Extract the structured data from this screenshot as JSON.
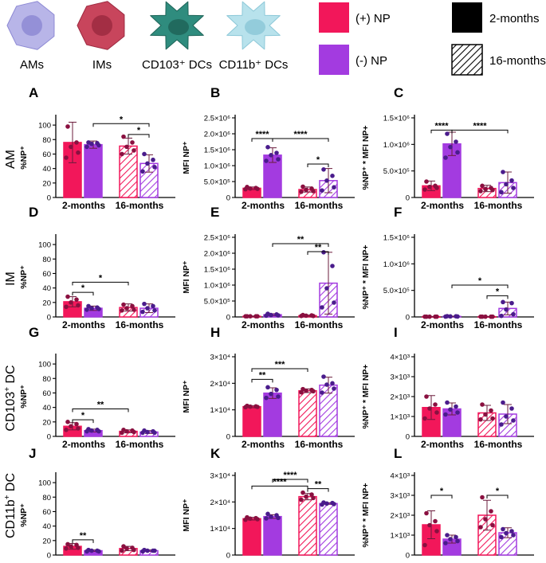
{
  "cells": [
    {
      "name": "AMs",
      "color": "#b8b5e8",
      "nucleus": "#8d89d4",
      "kind": "round"
    },
    {
      "name": "IMs",
      "color": "#c8455c",
      "nucleus": "#9c2a40",
      "kind": "round"
    },
    {
      "name": "CD103⁺ DCs",
      "color": "#2f8c7e",
      "nucleus": "#1e6458",
      "kind": "spiky"
    },
    {
      "name": "CD11b⁺ DCs",
      "color": "#b8e2ec",
      "nucleus": "#8cc8d8",
      "kind": "spiky"
    }
  ],
  "legend": {
    "np": [
      {
        "label": "(+) NP",
        "color": "#f2175a"
      },
      {
        "label": "(-) NP",
        "color": "#a33be0"
      }
    ],
    "age": [
      {
        "label": "2-months",
        "pattern": "solid"
      },
      {
        "label": "16-months",
        "pattern": "hatched"
      }
    ]
  },
  "colors": {
    "pos": "#f2175a",
    "neg": "#a33be0",
    "pos_dot": "#8a1040",
    "neg_dot": "#4a1c8c"
  },
  "rows": [
    {
      "label": "AM",
      "sup": ""
    },
    {
      "label": "IM",
      "sup": ""
    },
    {
      "label": "CD103",
      "sup": "+",
      "suffix": " DC"
    },
    {
      "label": "CD11b",
      "sup": "+",
      "suffix": " DC"
    }
  ],
  "ylabels": {
    "pct": "%NP⁺",
    "mfi": "MFI NP⁺",
    "prod": "%NP⁺ * MFI NP+"
  },
  "groups": [
    "2-months",
    "16-months"
  ],
  "chart_data": [
    {
      "letter": "A",
      "type": "bar",
      "kind": "pct",
      "ylim": [
        0,
        110
      ],
      "ticks": [
        {
          "v": 0,
          "t": "0"
        },
        {
          "v": 20,
          "t": "20"
        },
        {
          "v": 40,
          "t": "40"
        },
        {
          "v": 60,
          "t": "60"
        },
        {
          "v": 80,
          "t": "80"
        },
        {
          "v": 100,
          "t": "100"
        }
      ],
      "values": [
        76,
        73,
        71,
        47
      ],
      "errors": [
        28,
        5,
        11,
        12
      ],
      "points": [
        [
          98,
          76,
          70,
          62,
          55
        ],
        [
          76,
          75,
          74,
          72,
          70
        ],
        [
          84,
          76,
          70,
          65,
          60
        ],
        [
          60,
          52,
          47,
          42,
          36
        ]
      ],
      "sig": [
        {
          "a": 1,
          "b": 3,
          "t": "*",
          "v": 102
        },
        {
          "a": 2,
          "b": 3,
          "t": "*",
          "v": 87
        }
      ]
    },
    {
      "letter": "B",
      "type": "bar",
      "kind": "mfi",
      "ylim": [
        0,
        2.5
      ],
      "ticks": [
        {
          "v": 0,
          "t": "0"
        },
        {
          "v": 0.5,
          "t": "5.0×10⁵"
        },
        {
          "v": 1.0,
          "t": "1.0×10⁶"
        },
        {
          "v": 1.5,
          "t": "1.5×10⁶"
        },
        {
          "v": 2.0,
          "t": "2.0×10⁶"
        },
        {
          "v": 2.5,
          "t": "2.5×10⁶"
        }
      ],
      "values": [
        0.29,
        1.33,
        0.25,
        0.53
      ],
      "errors": [
        0.04,
        0.23,
        0.08,
        0.38
      ],
      "points": [
        [
          0.33,
          0.3,
          0.28,
          0.27,
          0.26
        ],
        [
          1.58,
          1.4,
          1.33,
          1.2,
          1.15
        ],
        [
          0.34,
          0.28,
          0.24,
          0.2,
          0.18
        ],
        [
          0.88,
          0.68,
          0.53,
          0.32,
          0.22
        ]
      ],
      "sig": [
        {
          "a": 0,
          "b": 1,
          "t": "****",
          "v": 1.85
        },
        {
          "a": 1,
          "b": 3,
          "t": "****",
          "v": 1.85
        },
        {
          "a": 2,
          "b": 3,
          "t": "*",
          "v": 1.05
        }
      ]
    },
    {
      "letter": "C",
      "type": "bar",
      "kind": "prod",
      "ylim": [
        0,
        1.5
      ],
      "ticks": [
        {
          "v": 0,
          "t": "0"
        },
        {
          "v": 0.5,
          "t": "5.0×10⁵"
        },
        {
          "v": 1.0,
          "t": "1.0×10⁶"
        },
        {
          "v": 1.5,
          "t": "1.5×10⁶"
        }
      ],
      "values": [
        0.22,
        1.01,
        0.17,
        0.28
      ],
      "errors": [
        0.09,
        0.22,
        0.06,
        0.2
      ],
      "points": [
        [
          0.3,
          0.22,
          0.2,
          0.18,
          0.15
        ],
        [
          1.2,
          1.05,
          0.95,
          0.85,
          0.75
        ],
        [
          0.22,
          0.18,
          0.16,
          0.14,
          0.12
        ],
        [
          0.48,
          0.32,
          0.25,
          0.18,
          0.1
        ]
      ],
      "sig": [
        {
          "a": 0,
          "b": 1,
          "t": "****",
          "v": 1.27
        },
        {
          "a": 1,
          "b": 3,
          "t": "****",
          "v": 1.27
        }
      ]
    },
    {
      "letter": "D",
      "type": "bar",
      "kind": "pct",
      "ylim": [
        0,
        110
      ],
      "ticks": [
        {
          "v": 0,
          "t": "0"
        },
        {
          "v": 20,
          "t": "20"
        },
        {
          "v": 40,
          "t": "40"
        },
        {
          "v": 60,
          "t": "60"
        },
        {
          "v": 80,
          "t": "80"
        },
        {
          "v": 100,
          "t": "100"
        }
      ],
      "values": [
        21,
        12,
        13,
        12
      ],
      "errors": [
        7,
        3,
        5,
        6
      ],
      "points": [
        [
          28,
          24,
          20,
          16,
          14
        ],
        [
          15,
          13,
          12,
          11,
          10
        ],
        [
          17,
          15,
          12,
          10,
          9
        ],
        [
          18,
          15,
          12,
          9,
          7
        ]
      ],
      "sig": [
        {
          "a": 0,
          "b": 1,
          "t": "*",
          "v": 34
        },
        {
          "a": 0,
          "b": 2,
          "t": "*",
          "v": 48
        }
      ]
    },
    {
      "letter": "E",
      "type": "bar",
      "kind": "mfi",
      "ylim": [
        0,
        2.5
      ],
      "ticks": [
        {
          "v": 0,
          "t": "0"
        },
        {
          "v": 0.5,
          "t": "5.0×10⁵"
        },
        {
          "v": 1.0,
          "t": "1.0×10⁶"
        },
        {
          "v": 1.5,
          "t": "1.5×10⁶"
        },
        {
          "v": 2.0,
          "t": "2.0×10⁶"
        },
        {
          "v": 2.5,
          "t": "2.5×10⁶"
        }
      ],
      "values": [
        0.02,
        0.07,
        0.04,
        1.06
      ],
      "errors": [
        0.01,
        0.03,
        0.02,
        0.97
      ],
      "points": [
        [
          0.02,
          0.02,
          0.02,
          0.02,
          0.02
        ],
        [
          0.1,
          0.08,
          0.06,
          0.05,
          0.04
        ],
        [
          0.06,
          0.05,
          0.04,
          0.03,
          0.03
        ],
        [
          2.03,
          1.6,
          0.9,
          0.45,
          0.3
        ]
      ],
      "sig": [
        {
          "a": 1,
          "b": 3,
          "t": "**",
          "v": 2.3
        },
        {
          "a": 2,
          "b": 3,
          "t": "**",
          "v": 2.05
        }
      ]
    },
    {
      "letter": "F",
      "type": "bar",
      "kind": "prod",
      "ylim": [
        0,
        1.5
      ],
      "ticks": [
        {
          "v": 0,
          "t": "0"
        },
        {
          "v": 0.5,
          "t": "5.0×10⁵"
        },
        {
          "v": 1.0,
          "t": "1.0×10⁶"
        },
        {
          "v": 1.5,
          "t": "1.5×10⁶"
        }
      ],
      "values": [
        0.005,
        0.01,
        0.005,
        0.16
      ],
      "errors": [
        0.003,
        0.005,
        0.003,
        0.12
      ],
      "points": [
        [
          0.005,
          0.005,
          0.005,
          0.005,
          0.005
        ],
        [
          0.015,
          0.012,
          0.01,
          0.008,
          0.006
        ],
        [
          0.005,
          0.005,
          0.005,
          0.005,
          0.005
        ],
        [
          0.28,
          0.26,
          0.14,
          0.05,
          0.02
        ]
      ],
      "sig": [
        {
          "a": 1,
          "b": 3,
          "t": "*",
          "v": 0.6
        },
        {
          "a": 2,
          "b": 3,
          "t": "*",
          "v": 0.4
        }
      ]
    },
    {
      "letter": "G",
      "type": "bar",
      "kind": "pct",
      "ylim": [
        0,
        110
      ],
      "ticks": [
        {
          "v": 0,
          "t": "0"
        },
        {
          "v": 20,
          "t": "20"
        },
        {
          "v": 40,
          "t": "40"
        },
        {
          "v": 60,
          "t": "60"
        },
        {
          "v": 80,
          "t": "80"
        },
        {
          "v": 100,
          "t": "100"
        }
      ],
      "values": [
        14,
        8,
        7,
        6
      ],
      "errors": [
        5,
        2,
        2,
        2
      ],
      "points": [
        [
          20,
          17,
          14,
          11,
          9
        ],
        [
          10,
          9,
          8,
          7,
          7
        ],
        [
          9,
          8,
          7,
          6,
          5
        ],
        [
          8,
          7,
          6,
          5,
          5
        ]
      ],
      "sig": [
        {
          "a": 0,
          "b": 1,
          "t": "*",
          "v": 23
        },
        {
          "a": 0,
          "b": 2,
          "t": "**",
          "v": 38
        }
      ]
    },
    {
      "letter": "H",
      "type": "bar",
      "kind": "mfi4",
      "ylim": [
        0,
        3.0
      ],
      "ticks": [
        {
          "v": 0,
          "t": "0"
        },
        {
          "v": 1,
          "t": "1×10⁴"
        },
        {
          "v": 2,
          "t": "2×10⁴"
        },
        {
          "v": 3,
          "t": "3×10⁴"
        }
      ],
      "values": [
        1.12,
        1.63,
        1.72,
        1.93
      ],
      "errors": [
        0.04,
        0.2,
        0.07,
        0.3
      ],
      "points": [
        [
          1.15,
          1.13,
          1.12,
          1.11,
          1.1
        ],
        [
          1.85,
          1.75,
          1.6,
          1.5,
          1.45
        ],
        [
          1.78,
          1.75,
          1.72,
          1.7,
          1.66
        ],
        [
          2.25,
          2.0,
          1.95,
          1.8,
          1.65
        ]
      ],
      "sig": [
        {
          "a": 0,
          "b": 1,
          "t": "**",
          "v": 2.15
        },
        {
          "a": 0,
          "b": 2,
          "t": "***",
          "v": 2.55
        }
      ]
    },
    {
      "letter": "I",
      "type": "bar",
      "kind": "prod3",
      "ylim": [
        0,
        4.0
      ],
      "ticks": [
        {
          "v": 0,
          "t": "0"
        },
        {
          "v": 1,
          "t": "1×10³"
        },
        {
          "v": 2,
          "t": "2×10³"
        },
        {
          "v": 3,
          "t": "3×10³"
        },
        {
          "v": 4,
          "t": "4×10³"
        }
      ],
      "values": [
        1.45,
        1.38,
        1.18,
        1.12
      ],
      "errors": [
        0.6,
        0.3,
        0.38,
        0.48
      ],
      "points": [
        [
          2.0,
          1.6,
          1.4,
          1.2,
          0.9
        ],
        [
          1.7,
          1.5,
          1.35,
          1.2,
          1.1
        ],
        [
          1.6,
          1.3,
          1.1,
          0.9,
          0.85
        ],
        [
          1.7,
          1.4,
          1.0,
          0.8,
          0.6
        ]
      ],
      "sig": []
    },
    {
      "letter": "J",
      "type": "bar",
      "kind": "pct",
      "ylim": [
        0,
        110
      ],
      "ticks": [
        {
          "v": 0,
          "t": "0"
        },
        {
          "v": 20,
          "t": "20"
        },
        {
          "v": 40,
          "t": "40"
        },
        {
          "v": 60,
          "t": "60"
        },
        {
          "v": 80,
          "t": "80"
        },
        {
          "v": 100,
          "t": "100"
        }
      ],
      "values": [
        12,
        6,
        9,
        6
      ],
      "errors": [
        4,
        1,
        3,
        1
      ],
      "points": [
        [
          15,
          14,
          12,
          10,
          9
        ],
        [
          7,
          6,
          6,
          5,
          5
        ],
        [
          12,
          10,
          9,
          7,
          6
        ],
        [
          7,
          6,
          6,
          6,
          5
        ]
      ],
      "sig": [
        {
          "a": 0,
          "b": 1,
          "t": "**",
          "v": 21
        }
      ]
    },
    {
      "letter": "K",
      "type": "bar",
      "kind": "mfi4",
      "ylim": [
        0,
        3.0
      ],
      "ticks": [
        {
          "v": 0,
          "t": "0"
        },
        {
          "v": 1,
          "t": "1×10⁴"
        },
        {
          "v": 2,
          "t": "2×10⁴"
        },
        {
          "v": 3,
          "t": "3×10⁴"
        }
      ],
      "values": [
        1.37,
        1.45,
        2.2,
        1.94
      ],
      "errors": [
        0.05,
        0.07,
        0.12,
        0.03
      ],
      "points": [
        [
          1.42,
          1.39,
          1.37,
          1.35,
          1.33
        ],
        [
          1.55,
          1.5,
          1.44,
          1.4,
          1.38
        ],
        [
          2.35,
          2.28,
          2.2,
          2.15,
          2.08
        ],
        [
          1.98,
          1.96,
          1.94,
          1.92,
          1.9
        ]
      ],
      "sig": [
        {
          "a": 0,
          "b": 2,
          "t": "****",
          "v": 2.6
        },
        {
          "a": 1,
          "b": 2,
          "t": "****",
          "v": 2.85
        },
        {
          "a": 2,
          "b": 3,
          "t": "**",
          "v": 2.5
        }
      ]
    },
    {
      "letter": "L",
      "type": "bar",
      "kind": "prod3",
      "ylim": [
        0,
        4.0
      ],
      "ticks": [
        {
          "v": 0,
          "t": "0"
        },
        {
          "v": 1,
          "t": "1×10³"
        },
        {
          "v": 2,
          "t": "2×10³"
        },
        {
          "v": 3,
          "t": "3×10³"
        },
        {
          "v": 4,
          "t": "4×10³"
        }
      ],
      "values": [
        1.52,
        0.8,
        2.0,
        1.12
      ],
      "errors": [
        0.7,
        0.2,
        0.75,
        0.25
      ],
      "points": [
        [
          2.1,
          1.7,
          1.5,
          1.2,
          0.5
        ],
        [
          1.0,
          0.9,
          0.8,
          0.7,
          0.6
        ],
        [
          2.9,
          2.2,
          1.8,
          1.5,
          1.4
        ],
        [
          1.3,
          1.2,
          1.1,
          1.0,
          0.9
        ]
      ],
      "sig": [
        {
          "a": 0,
          "b": 1,
          "t": "*",
          "v": 3.0
        },
        {
          "a": 2,
          "b": 3,
          "t": "*",
          "v": 3.0
        }
      ]
    }
  ]
}
